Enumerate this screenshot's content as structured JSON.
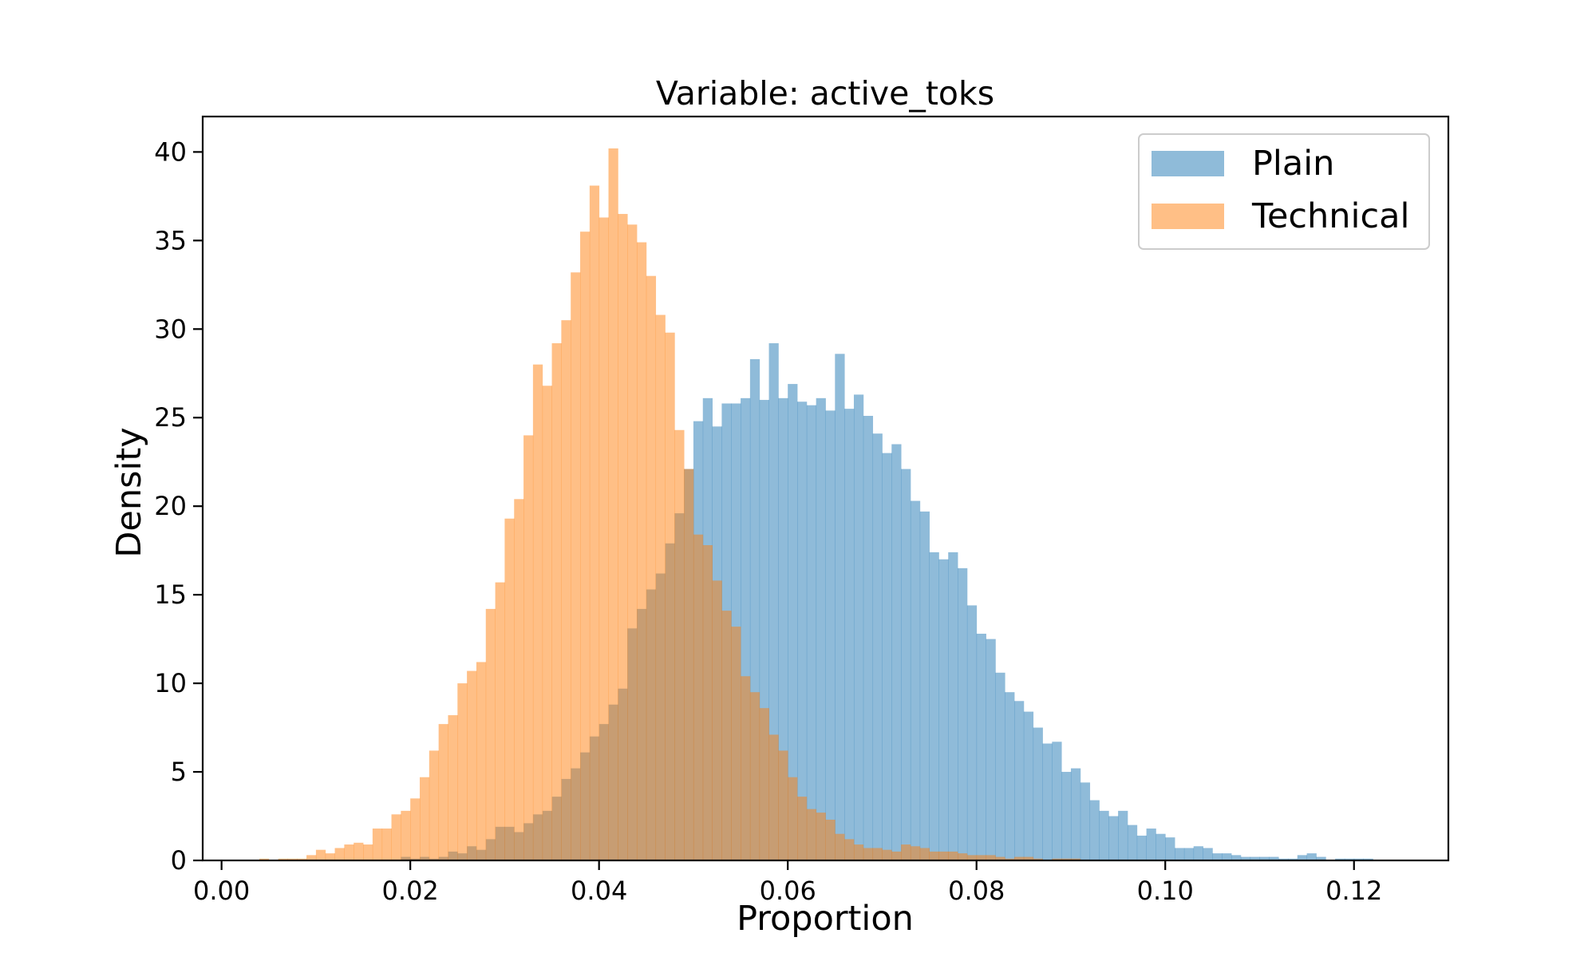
{
  "chart_data": {
    "type": "histogram",
    "title": "Variable: active_toks",
    "xlabel": "Proportion",
    "ylabel": "Density",
    "xlim": [
      -0.002,
      0.13
    ],
    "ylim": [
      0,
      42
    ],
    "x_ticks": [
      0.0,
      0.02,
      0.04,
      0.06,
      0.08,
      0.1,
      0.12
    ],
    "x_tick_labels": [
      "0.00",
      "0.02",
      "0.04",
      "0.06",
      "0.08",
      "0.10",
      "0.12"
    ],
    "y_ticks": [
      0,
      5,
      10,
      15,
      20,
      25,
      30,
      35,
      40
    ],
    "y_tick_labels": [
      "0",
      "5",
      "10",
      "15",
      "20",
      "25",
      "30",
      "35",
      "40"
    ],
    "grid": false,
    "legend_position": "top-right",
    "series": [
      {
        "name": "Plain",
        "color": "#1f77b4",
        "opacity": 0.5,
        "bins_x": [
          0.019,
          0.02,
          0.021,
          0.022,
          0.023,
          0.024,
          0.025,
          0.026,
          0.027,
          0.028,
          0.029,
          0.03,
          0.031,
          0.032,
          0.033,
          0.034,
          0.035,
          0.036,
          0.037,
          0.038,
          0.039,
          0.04,
          0.041,
          0.042,
          0.043,
          0.044,
          0.045,
          0.046,
          0.047,
          0.048,
          0.049,
          0.05,
          0.051,
          0.052,
          0.053,
          0.054,
          0.055,
          0.056,
          0.057,
          0.058,
          0.059,
          0.06,
          0.061,
          0.062,
          0.063,
          0.064,
          0.065,
          0.066,
          0.067,
          0.068,
          0.069,
          0.07,
          0.071,
          0.072,
          0.073,
          0.074,
          0.075,
          0.076,
          0.077,
          0.078,
          0.079,
          0.08,
          0.081,
          0.082,
          0.083,
          0.084,
          0.085,
          0.086,
          0.087,
          0.088,
          0.089,
          0.09,
          0.091,
          0.092,
          0.093,
          0.094,
          0.095,
          0.096,
          0.097,
          0.098,
          0.099,
          0.1,
          0.101,
          0.102,
          0.103,
          0.104,
          0.105,
          0.106,
          0.107,
          0.108,
          0.109,
          0.11,
          0.111,
          0.112,
          0.113,
          0.114,
          0.115,
          0.116,
          0.117,
          0.118,
          0.119,
          0.12,
          0.121
        ],
        "density": [
          0.2,
          0.1,
          0.2,
          0.1,
          0.2,
          0.5,
          0.4,
          0.8,
          0.6,
          1.2,
          1.9,
          1.9,
          1.6,
          2.1,
          2.6,
          2.8,
          3.6,
          4.6,
          5.2,
          6.1,
          7.0,
          7.7,
          8.8,
          9.7,
          13.1,
          14.2,
          15.3,
          16.2,
          17.9,
          19.6,
          22.1,
          24.8,
          26.1,
          24.5,
          25.8,
          25.8,
          26.1,
          28.3,
          26.0,
          29.2,
          26.1,
          26.9,
          25.9,
          25.7,
          26.1,
          25.4,
          28.6,
          25.5,
          26.3,
          25.1,
          24.1,
          23.0,
          23.5,
          22.1,
          20.3,
          19.7,
          17.4,
          17.0,
          17.4,
          16.5,
          14.4,
          12.8,
          12.5,
          10.6,
          9.5,
          9.0,
          8.4,
          7.5,
          6.6,
          6.7,
          5.0,
          5.2,
          4.4,
          3.4,
          2.8,
          2.5,
          2.8,
          2.0,
          1.4,
          1.8,
          1.5,
          1.3,
          0.7,
          0.7,
          0.8,
          0.7,
          0.4,
          0.4,
          0.3,
          0.2,
          0.2,
          0.2,
          0.2,
          0.1,
          0.1,
          0.3,
          0.4,
          0.2,
          0.0,
          0.1,
          0.1,
          0.1,
          0.1
        ]
      },
      {
        "name": "Technical",
        "color": "#ff7f0e",
        "opacity": 0.5,
        "bins_x": [
          0.004,
          0.005,
          0.006,
          0.007,
          0.008,
          0.009,
          0.01,
          0.011,
          0.012,
          0.013,
          0.014,
          0.015,
          0.016,
          0.017,
          0.018,
          0.019,
          0.02,
          0.021,
          0.022,
          0.023,
          0.024,
          0.025,
          0.026,
          0.027,
          0.028,
          0.029,
          0.03,
          0.031,
          0.032,
          0.033,
          0.034,
          0.035,
          0.036,
          0.037,
          0.038,
          0.039,
          0.04,
          0.041,
          0.042,
          0.043,
          0.044,
          0.045,
          0.046,
          0.047,
          0.048,
          0.049,
          0.05,
          0.051,
          0.052,
          0.053,
          0.054,
          0.055,
          0.056,
          0.057,
          0.058,
          0.059,
          0.06,
          0.061,
          0.062,
          0.063,
          0.064,
          0.065,
          0.066,
          0.067,
          0.068,
          0.069,
          0.07,
          0.071,
          0.072,
          0.073,
          0.074,
          0.075,
          0.076,
          0.077,
          0.078,
          0.079,
          0.08,
          0.081,
          0.082,
          0.083,
          0.084,
          0.085,
          0.086,
          0.087,
          0.088,
          0.089,
          0.09
        ],
        "density": [
          0.1,
          0.0,
          0.1,
          0.1,
          0.1,
          0.3,
          0.6,
          0.4,
          0.7,
          0.9,
          1.0,
          0.9,
          1.8,
          1.8,
          2.6,
          2.8,
          3.5,
          4.7,
          6.2,
          7.7,
          8.2,
          10.0,
          10.7,
          11.2,
          14.2,
          15.7,
          19.3,
          20.4,
          24.0,
          28.0,
          26.8,
          29.2,
          30.5,
          33.2,
          35.5,
          38.1,
          36.3,
          40.2,
          36.5,
          35.9,
          34.9,
          33.0,
          30.8,
          29.8,
          24.3,
          22.1,
          18.4,
          17.8,
          15.8,
          14.1,
          13.2,
          10.4,
          9.5,
          8.6,
          7.1,
          6.2,
          4.7,
          3.6,
          2.9,
          2.7,
          2.3,
          1.5,
          1.2,
          0.9,
          0.7,
          0.7,
          0.6,
          0.5,
          0.9,
          0.8,
          0.7,
          0.5,
          0.5,
          0.5,
          0.4,
          0.3,
          0.3,
          0.3,
          0.2,
          0.1,
          0.2,
          0.2,
          0.1,
          0.0,
          0.1,
          0.1,
          0.1
        ]
      }
    ]
  }
}
